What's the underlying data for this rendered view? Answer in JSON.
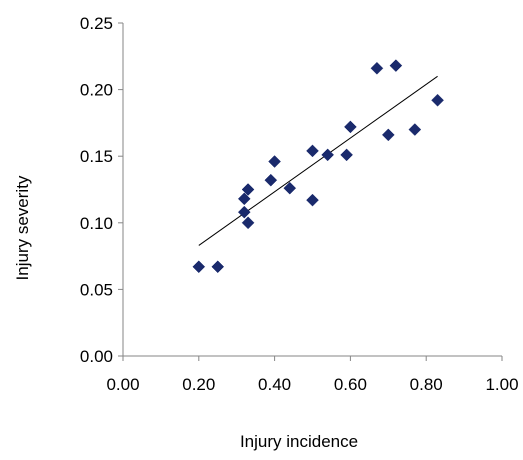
{
  "chart_data": {
    "type": "scatter",
    "title": "",
    "xlabel": "Injury incidence",
    "ylabel": "Injury severity",
    "xlim": [
      0.0,
      1.0
    ],
    "ylim": [
      0.0,
      0.25
    ],
    "x_ticks": [
      "0.00",
      "0.20",
      "0.40",
      "0.60",
      "0.80",
      "1.00"
    ],
    "y_ticks": [
      "0.00",
      "0.05",
      "0.10",
      "0.15",
      "0.20",
      "0.25"
    ],
    "grid": false,
    "legend": "none",
    "series": [
      {
        "marker": "diamond",
        "color": "#1a2a6c",
        "points": [
          {
            "x": 0.2,
            "y": 0.067
          },
          {
            "x": 0.25,
            "y": 0.067
          },
          {
            "x": 0.32,
            "y": 0.118
          },
          {
            "x": 0.32,
            "y": 0.108
          },
          {
            "x": 0.33,
            "y": 0.125
          },
          {
            "x": 0.33,
            "y": 0.1
          },
          {
            "x": 0.39,
            "y": 0.132
          },
          {
            "x": 0.4,
            "y": 0.146
          },
          {
            "x": 0.44,
            "y": 0.126
          },
          {
            "x": 0.5,
            "y": 0.154
          },
          {
            "x": 0.5,
            "y": 0.117
          },
          {
            "x": 0.54,
            "y": 0.151
          },
          {
            "x": 0.59,
            "y": 0.151
          },
          {
            "x": 0.6,
            "y": 0.172
          },
          {
            "x": 0.67,
            "y": 0.216
          },
          {
            "x": 0.7,
            "y": 0.166
          },
          {
            "x": 0.72,
            "y": 0.218
          },
          {
            "x": 0.77,
            "y": 0.17
          },
          {
            "x": 0.83,
            "y": 0.192
          }
        ]
      }
    ],
    "trendline": {
      "type": "linear",
      "color": "#000000",
      "from": {
        "x": 0.2,
        "y": 0.083
      },
      "to": {
        "x": 0.83,
        "y": 0.21
      }
    }
  }
}
